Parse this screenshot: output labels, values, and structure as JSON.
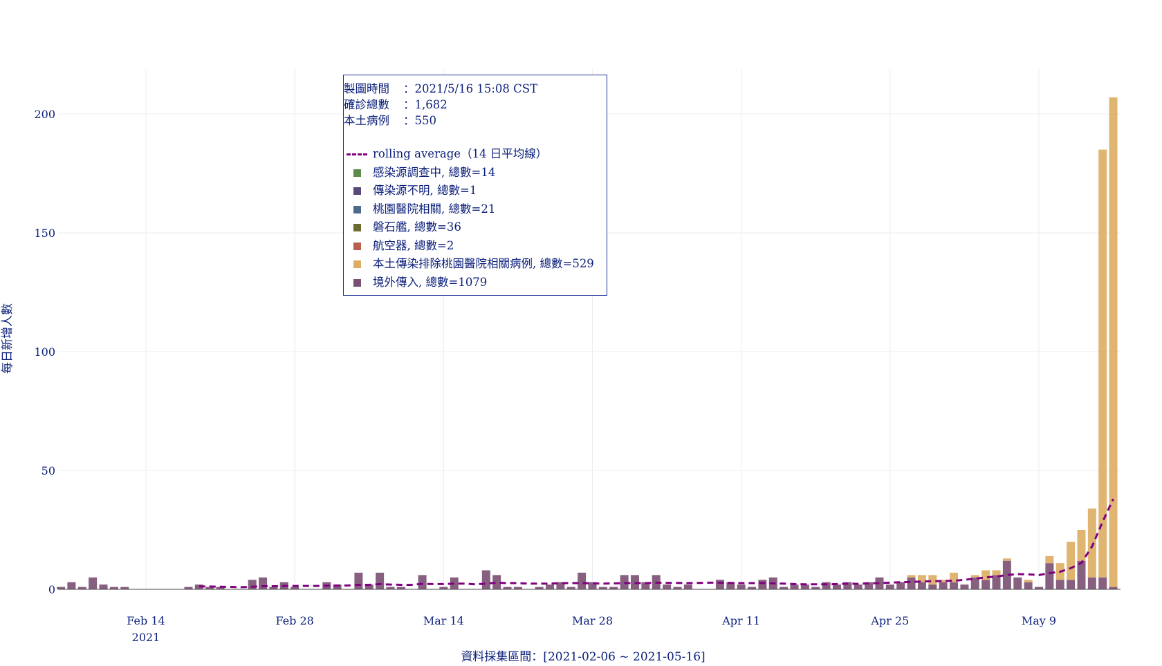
{
  "info": {
    "time_label": "製圖時間",
    "time_value": "2021/5/16 15:08 CST",
    "total_label": "確診總數",
    "total_value": "1,682",
    "local_label": "本土病例",
    "local_value": "550",
    "separator": "："
  },
  "legend": {
    "rolling_label": "rolling average（14 日平均線）",
    "items": [
      {
        "label": "感染源調查中, 總數=14",
        "color": "#5f8a4e"
      },
      {
        "label": "傳染源不明, 總數=1",
        "color": "#5a4a7a"
      },
      {
        "label": "桃園醫院相關, 總數=21",
        "color": "#4e6a8a"
      },
      {
        "label": "磐石艦, 總數=36",
        "color": "#6b6b32"
      },
      {
        "label": "航空器, 總數=2",
        "color": "#b8604e"
      },
      {
        "label": "本土傳染排除桃園醫院相關病例, 總數=529",
        "color": "#ddad62"
      },
      {
        "label": "境外傳入, 總數=1079",
        "color": "#7a4f72"
      }
    ]
  },
  "chart_data": {
    "type": "bar",
    "stacked": true,
    "xlabel": "資料採集區間：[2021-02-06 ~ 2021-05-16]",
    "ylabel": "每日新增人數",
    "ylim": [
      0,
      210
    ],
    "yticks": [
      0,
      50,
      100,
      150,
      200
    ],
    "x_start": "2021-02-06",
    "x_end": "2021-05-16",
    "xticks": [
      {
        "date": "2021-02-14",
        "label": "Feb 14",
        "sublabel": "2021"
      },
      {
        "date": "2021-02-28",
        "label": "Feb 28",
        "sublabel": ""
      },
      {
        "date": "2021-03-14",
        "label": "Mar 14",
        "sublabel": ""
      },
      {
        "date": "2021-03-28",
        "label": "Mar 28",
        "sublabel": ""
      },
      {
        "date": "2021-04-11",
        "label": "Apr 11",
        "sublabel": ""
      },
      {
        "date": "2021-04-25",
        "label": "Apr 25",
        "sublabel": ""
      },
      {
        "date": "2021-05-09",
        "label": "May 9",
        "sublabel": ""
      }
    ],
    "grid": true,
    "legend_position": "top-left",
    "series_colors": {
      "imported": "#7a4f72",
      "local": "#ddad62",
      "investigating": "#5f8a4e",
      "unknown": "#5a4a7a",
      "taoyuan": "#4e6a8a",
      "navy": "#6b6b32",
      "aircraft": "#b8604e",
      "rolling": "#800080"
    },
    "dates": [
      "2021-02-06",
      "2021-02-07",
      "2021-02-08",
      "2021-02-09",
      "2021-02-10",
      "2021-02-11",
      "2021-02-12",
      "2021-02-13",
      "2021-02-14",
      "2021-02-15",
      "2021-02-16",
      "2021-02-17",
      "2021-02-18",
      "2021-02-19",
      "2021-02-20",
      "2021-02-21",
      "2021-02-22",
      "2021-02-23",
      "2021-02-24",
      "2021-02-25",
      "2021-02-26",
      "2021-02-27",
      "2021-02-28",
      "2021-03-01",
      "2021-03-02",
      "2021-03-03",
      "2021-03-04",
      "2021-03-05",
      "2021-03-06",
      "2021-03-07",
      "2021-03-08",
      "2021-03-09",
      "2021-03-10",
      "2021-03-11",
      "2021-03-12",
      "2021-03-13",
      "2021-03-14",
      "2021-03-15",
      "2021-03-16",
      "2021-03-17",
      "2021-03-18",
      "2021-03-19",
      "2021-03-20",
      "2021-03-21",
      "2021-03-22",
      "2021-03-23",
      "2021-03-24",
      "2021-03-25",
      "2021-03-26",
      "2021-03-27",
      "2021-03-28",
      "2021-03-29",
      "2021-03-30",
      "2021-03-31",
      "2021-04-01",
      "2021-04-02",
      "2021-04-03",
      "2021-04-04",
      "2021-04-05",
      "2021-04-06",
      "2021-04-07",
      "2021-04-08",
      "2021-04-09",
      "2021-04-10",
      "2021-04-11",
      "2021-04-12",
      "2021-04-13",
      "2021-04-14",
      "2021-04-15",
      "2021-04-16",
      "2021-04-17",
      "2021-04-18",
      "2021-04-19",
      "2021-04-20",
      "2021-04-21",
      "2021-04-22",
      "2021-04-23",
      "2021-04-24",
      "2021-04-25",
      "2021-04-26",
      "2021-04-27",
      "2021-04-28",
      "2021-04-29",
      "2021-04-30",
      "2021-05-01",
      "2021-05-02",
      "2021-05-03",
      "2021-05-04",
      "2021-05-05",
      "2021-05-06",
      "2021-05-07",
      "2021-05-08",
      "2021-05-09",
      "2021-05-10",
      "2021-05-11",
      "2021-05-12",
      "2021-05-13",
      "2021-05-14",
      "2021-05-15",
      "2021-05-16"
    ],
    "imported": [
      1,
      3,
      1,
      5,
      2,
      1,
      1,
      0,
      0,
      0,
      0,
      0,
      1,
      2,
      1,
      1,
      0,
      0,
      4,
      5,
      1,
      3,
      1,
      0,
      0,
      3,
      2,
      0,
      7,
      2,
      7,
      1,
      1,
      0,
      6,
      0,
      1,
      5,
      0,
      0,
      8,
      6,
      1,
      1,
      0,
      1,
      2,
      3,
      1,
      7,
      3,
      1,
      1,
      6,
      6,
      3,
      6,
      2,
      1,
      2,
      0,
      0,
      4,
      3,
      2,
      1,
      4,
      5,
      1,
      2,
      2,
      1,
      3,
      2,
      3,
      2,
      3,
      5,
      2,
      3,
      5,
      3,
      2,
      3,
      3,
      2,
      5,
      4,
      6,
      12,
      5,
      3,
      1,
      11,
      4,
      4,
      12,
      5,
      5,
      1
    ],
    "local": [
      0,
      0,
      0,
      0,
      0,
      0,
      0,
      0,
      0,
      0,
      0,
      0,
      0,
      0,
      0,
      0,
      0,
      0,
      0,
      0,
      0,
      0,
      0,
      0,
      0,
      0,
      0,
      0,
      0,
      0,
      0,
      0,
      0,
      0,
      0,
      0,
      0,
      0,
      0,
      0,
      0,
      0,
      0,
      0,
      0,
      0,
      0,
      0,
      0,
      0,
      0,
      0,
      0,
      0,
      0,
      0,
      0,
      0,
      0,
      0,
      0,
      0,
      0,
      0,
      0,
      0,
      0,
      0,
      0,
      0,
      0,
      0,
      0,
      0,
      0,
      0,
      0,
      0,
      0,
      0,
      1,
      3,
      4,
      1,
      4,
      0,
      1,
      4,
      2,
      1,
      0,
      1,
      0,
      3,
      7,
      16,
      13,
      29,
      180,
      206
    ],
    "investigating": [
      0,
      0,
      0,
      0,
      0,
      0,
      0,
      0,
      0,
      0,
      0,
      0,
      0,
      0,
      0,
      0,
      0,
      0,
      0,
      0,
      0,
      0,
      0,
      0,
      0,
      0,
      0,
      0,
      0,
      0,
      0,
      0,
      0,
      0,
      0,
      0,
      0,
      0,
      0,
      0,
      0,
      0,
      0,
      0,
      0,
      0,
      0,
      0,
      0,
      0,
      0,
      0,
      0,
      0,
      0,
      0,
      0,
      0,
      0,
      0,
      0,
      0,
      0,
      0,
      0,
      0,
      0,
      0,
      0,
      0,
      0,
      0,
      0,
      0,
      0,
      0,
      0,
      0,
      0,
      0,
      0,
      0,
      0,
      0,
      0,
      0,
      0,
      0,
      0,
      0,
      0,
      0,
      0,
      0,
      0,
      0,
      0,
      0,
      0,
      0
    ],
    "unknown": [
      0,
      0,
      0,
      0,
      0,
      0,
      0,
      0,
      0,
      0,
      0,
      0,
      0,
      0,
      0,
      0,
      0,
      0,
      0,
      0,
      0,
      0,
      0,
      0,
      0,
      0,
      0,
      0,
      0,
      0,
      0,
      0,
      0,
      0,
      0,
      0,
      0,
      0,
      0,
      0,
      0,
      0,
      0,
      0,
      0,
      0,
      0,
      0,
      0,
      0,
      0,
      0,
      0,
      0,
      0,
      0,
      0,
      0,
      0,
      0,
      0,
      0,
      0,
      0,
      0,
      0,
      0,
      0,
      0,
      0,
      0,
      0,
      0,
      0,
      0,
      0,
      0,
      0,
      0,
      0,
      0,
      0,
      0,
      0,
      0,
      0,
      0,
      0,
      0,
      0,
      0,
      0,
      0,
      0,
      0,
      0,
      0,
      0,
      0,
      0
    ],
    "taoyuan": [
      0,
      0,
      0,
      0,
      0,
      0,
      0,
      0,
      0,
      0,
      0,
      0,
      0,
      0,
      0,
      0,
      0,
      0,
      0,
      0,
      0,
      0,
      0,
      0,
      0,
      0,
      0,
      0,
      0,
      0,
      0,
      0,
      0,
      0,
      0,
      0,
      0,
      0,
      0,
      0,
      0,
      0,
      0,
      0,
      0,
      0,
      0,
      0,
      0,
      0,
      0,
      0,
      0,
      0,
      0,
      0,
      0,
      0,
      0,
      0,
      0,
      0,
      0,
      0,
      0,
      0,
      0,
      0,
      0,
      0,
      0,
      0,
      0,
      0,
      0,
      0,
      0,
      0,
      0,
      0,
      0,
      0,
      0,
      0,
      0,
      0,
      0,
      0,
      0,
      0,
      0,
      0,
      0,
      0,
      0,
      0,
      0,
      0,
      0,
      0
    ],
    "navy": [
      0,
      0,
      0,
      0,
      0,
      0,
      0,
      0,
      0,
      0,
      0,
      0,
      0,
      0,
      0,
      0,
      0,
      0,
      0,
      0,
      0,
      0,
      0,
      0,
      0,
      0,
      0,
      0,
      0,
      0,
      0,
      0,
      0,
      0,
      0,
      0,
      0,
      0,
      0,
      0,
      0,
      0,
      0,
      0,
      0,
      0,
      0,
      0,
      0,
      0,
      0,
      0,
      0,
      0,
      0,
      0,
      0,
      0,
      0,
      0,
      0,
      0,
      0,
      0,
      0,
      0,
      0,
      0,
      0,
      0,
      0,
      0,
      0,
      0,
      0,
      0,
      0,
      0,
      0,
      0,
      0,
      0,
      0,
      0,
      0,
      0,
      0,
      0,
      0,
      0,
      0,
      0,
      0,
      0,
      0,
      0,
      0,
      0,
      0,
      0
    ],
    "aircraft": [
      0,
      0,
      0,
      0,
      0,
      0,
      0,
      0,
      0,
      0,
      0,
      0,
      0,
      0,
      0,
      0,
      0,
      0,
      0,
      0,
      0,
      0,
      0,
      0,
      0,
      0,
      0,
      0,
      0,
      0,
      0,
      0,
      0,
      0,
      0,
      0,
      0,
      0,
      0,
      0,
      0,
      0,
      0,
      0,
      0,
      0,
      0,
      0,
      0,
      0,
      0,
      0,
      0,
      0,
      0,
      0,
      0,
      0,
      0,
      0,
      0,
      0,
      0,
      0,
      0,
      0,
      0,
      0,
      0,
      0,
      0,
      0,
      0,
      0,
      0,
      0,
      0,
      0,
      0,
      0,
      0,
      0,
      0,
      0,
      0,
      0,
      0,
      0,
      0,
      0,
      0,
      0,
      0,
      0,
      0,
      0,
      0,
      0,
      0,
      0
    ],
    "rolling": [
      null,
      null,
      null,
      null,
      null,
      null,
      null,
      null,
      null,
      null,
      null,
      null,
      null,
      1.2,
      1.2,
      1.1,
      1.0,
      0.9,
      1.1,
      1.3,
      1.3,
      1.4,
      1.4,
      1.4,
      1.4,
      1.5,
      1.6,
      1.6,
      1.9,
      1.9,
      2.2,
      2.0,
      1.9,
      1.9,
      2.3,
      2.2,
      2.2,
      2.4,
      2.4,
      2.1,
      2.4,
      2.8,
      2.6,
      2.6,
      2.4,
      2.4,
      2.4,
      2.6,
      2.6,
      2.6,
      2.5,
      2.4,
      2.5,
      2.6,
      2.6,
      2.6,
      2.8,
      2.7,
      2.7,
      2.6,
      2.7,
      2.8,
      2.8,
      2.7,
      2.6,
      2.6,
      2.7,
      2.5,
      2.4,
      2.2,
      2.1,
      2.1,
      2.1,
      2.2,
      2.4,
      2.3,
      2.5,
      2.6,
      2.8,
      3.0,
      3.1,
      3.3,
      3.4,
      3.5,
      3.6,
      4.0,
      4.5,
      5.0,
      5.4,
      6.0,
      6.4,
      6.3,
      6.0,
      6.8,
      7.4,
      8.9,
      11.1,
      18.0,
      28.5,
      38.0
    ]
  }
}
